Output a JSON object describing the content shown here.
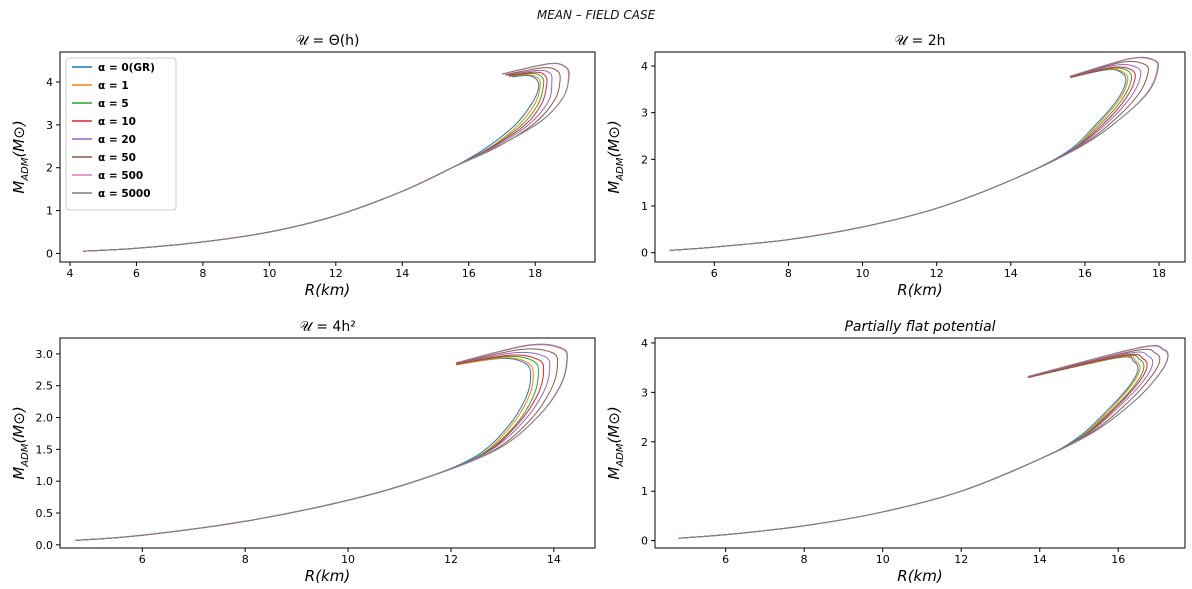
{
  "figure": {
    "suptitle": "MEAN – FIELD CASE"
  },
  "legend": {
    "placement": "upper-left of first panel",
    "entries": [
      "α = 0(GR)",
      "α = 1",
      "α = 5",
      "α = 10",
      "α = 20",
      "α = 50",
      "α = 500",
      "α = 5000"
    ]
  },
  "colors": {
    "series": [
      "#1f77b4",
      "#ff7f0e",
      "#2ca02c",
      "#d62728",
      "#9467bd",
      "#8c564b",
      "#e377c2",
      "#7f7f7f"
    ]
  },
  "chart_data": [
    {
      "type": "line",
      "title": "𝒰 = Θ(h)",
      "xlabel": "R(km)",
      "ylabel": "M_ADM(M_⊙)",
      "xlim": [
        3.7,
        19.8
      ],
      "ylim": [
        -0.2,
        4.7
      ],
      "xticks": [
        4,
        6,
        8,
        10,
        12,
        14,
        16,
        18
      ],
      "yticks": [
        0,
        1,
        2,
        3,
        4
      ],
      "grid": false,
      "legend": true,
      "base_curve": {
        "x": [
          4.4,
          6,
          8,
          10,
          12,
          14,
          15.5,
          16.5
        ],
        "y": [
          0.05,
          0.12,
          0.27,
          0.5,
          0.88,
          1.45,
          2.0,
          2.45
        ]
      },
      "series": [
        {
          "name": "α = 0(GR)",
          "x": [
            16.5,
            17.4,
            17.9,
            18.1,
            18.05,
            17.8,
            17.3
          ],
          "y": [
            2.45,
            3.0,
            3.5,
            3.85,
            4.05,
            4.15,
            4.12
          ]
        },
        {
          "name": "α = 1",
          "x": [
            16.6,
            17.5,
            18.0,
            18.15,
            18.1,
            17.8,
            17.2
          ],
          "y": [
            2.45,
            3.0,
            3.5,
            3.9,
            4.08,
            4.17,
            4.13
          ]
        },
        {
          "name": "α = 5",
          "x": [
            16.6,
            17.6,
            18.1,
            18.25,
            18.2,
            17.9,
            17.2
          ],
          "y": [
            2.45,
            3.0,
            3.5,
            3.92,
            4.12,
            4.2,
            4.14
          ]
        },
        {
          "name": "α = 10",
          "x": [
            16.7,
            17.7,
            18.2,
            18.35,
            18.3,
            18.0,
            17.2
          ],
          "y": [
            2.48,
            3.0,
            3.5,
            3.95,
            4.15,
            4.23,
            4.15
          ]
        },
        {
          "name": "α = 20",
          "x": [
            16.8,
            17.8,
            18.4,
            18.5,
            18.45,
            18.1,
            17.1
          ],
          "y": [
            2.5,
            3.0,
            3.55,
            4.0,
            4.2,
            4.27,
            4.16
          ]
        },
        {
          "name": "α = 50",
          "x": [
            16.9,
            18.0,
            18.6,
            18.75,
            18.65,
            18.2,
            17.1
          ],
          "y": [
            2.5,
            3.05,
            3.6,
            4.05,
            4.27,
            4.33,
            4.17
          ]
        },
        {
          "name": "α = 500",
          "x": [
            17.0,
            18.2,
            18.85,
            19.0,
            18.9,
            18.4,
            17.0
          ],
          "y": [
            2.55,
            3.1,
            3.65,
            4.12,
            4.35,
            4.42,
            4.18
          ]
        },
        {
          "name": "α = 5000",
          "x": [
            17.0,
            18.2,
            18.85,
            19.02,
            18.92,
            18.42,
            17.0
          ],
          "y": [
            2.55,
            3.1,
            3.65,
            4.12,
            4.35,
            4.43,
            4.19
          ]
        }
      ]
    },
    {
      "type": "line",
      "title": "𝒰 = 2h",
      "xlabel": "R(km)",
      "ylabel": "M_ADM(M_⊙)",
      "xlim": [
        4.4,
        18.7
      ],
      "ylim": [
        -0.2,
        4.3
      ],
      "xticks": [
        6,
        8,
        10,
        12,
        14,
        16,
        18
      ],
      "yticks": [
        0,
        1,
        2,
        3,
        4
      ],
      "grid": false,
      "legend": false,
      "base_curve": {
        "x": [
          4.8,
          6,
          8,
          10,
          12,
          14,
          15.5
        ],
        "y": [
          0.05,
          0.12,
          0.28,
          0.55,
          0.95,
          1.55,
          2.15
        ]
      },
      "series": [
        {
          "x": [
            15.5,
            16.3,
            16.85,
            17.1,
            17.0,
            16.6,
            15.6
          ],
          "y": [
            2.15,
            2.75,
            3.25,
            3.65,
            3.85,
            3.92,
            3.75
          ]
        },
        {
          "x": [
            15.55,
            16.35,
            16.9,
            17.15,
            17.05,
            16.6,
            15.6
          ],
          "y": [
            2.15,
            2.75,
            3.25,
            3.66,
            3.86,
            3.93,
            3.75
          ]
        },
        {
          "x": [
            15.6,
            16.45,
            17.0,
            17.25,
            17.15,
            16.7,
            15.6
          ],
          "y": [
            2.18,
            2.78,
            3.28,
            3.7,
            3.9,
            3.95,
            3.76
          ]
        },
        {
          "x": [
            15.65,
            16.55,
            17.1,
            17.35,
            17.25,
            16.75,
            15.6
          ],
          "y": [
            2.2,
            2.8,
            3.3,
            3.72,
            3.92,
            3.97,
            3.76
          ]
        },
        {
          "x": [
            15.7,
            16.65,
            17.25,
            17.5,
            17.4,
            16.85,
            15.6
          ],
          "y": [
            2.22,
            2.82,
            3.35,
            3.78,
            3.97,
            4.02,
            3.77
          ]
        },
        {
          "x": [
            15.8,
            16.8,
            17.45,
            17.7,
            17.6,
            17.0,
            15.6
          ],
          "y": [
            2.25,
            2.85,
            3.4,
            3.85,
            4.04,
            4.08,
            3.77
          ]
        },
        {
          "x": [
            15.9,
            17.0,
            17.7,
            17.95,
            17.85,
            17.2,
            15.6
          ],
          "y": [
            2.28,
            2.9,
            3.45,
            3.92,
            4.12,
            4.15,
            3.78
          ]
        },
        {
          "x": [
            15.9,
            17.0,
            17.72,
            17.97,
            17.87,
            17.22,
            15.6
          ],
          "y": [
            2.28,
            2.9,
            3.45,
            3.93,
            4.13,
            4.16,
            3.78
          ]
        }
      ]
    },
    {
      "type": "line",
      "title": "𝒰 = 4h²",
      "xlabel": "R(km)",
      "ylabel": "M_ADM(M_⊙)",
      "xlim": [
        4.4,
        14.8
      ],
      "ylim": [
        -0.05,
        3.25
      ],
      "xticks": [
        6,
        8,
        10,
        12,
        14
      ],
      "yticks": [
        0.0,
        0.5,
        1.0,
        1.5,
        2.0,
        2.5,
        3.0
      ],
      "grid": false,
      "legend": false,
      "base_curve": {
        "x": [
          4.7,
          6,
          8,
          10,
          11.5,
          12.5
        ],
        "y": [
          0.07,
          0.15,
          0.37,
          0.7,
          1.05,
          1.4
        ]
      },
      "series": [
        {
          "x": [
            12.5,
            13.1,
            13.45,
            13.55,
            13.45,
            13.0,
            12.1
          ],
          "y": [
            1.4,
            1.85,
            2.3,
            2.65,
            2.85,
            2.93,
            2.83
          ]
        },
        {
          "x": [
            12.55,
            13.15,
            13.5,
            13.6,
            13.5,
            13.05,
            12.1
          ],
          "y": [
            1.4,
            1.85,
            2.3,
            2.66,
            2.86,
            2.94,
            2.83
          ]
        },
        {
          "x": [
            12.6,
            13.25,
            13.6,
            13.7,
            13.6,
            13.1,
            12.1
          ],
          "y": [
            1.42,
            1.88,
            2.33,
            2.7,
            2.89,
            2.96,
            2.84
          ]
        },
        {
          "x": [
            12.65,
            13.3,
            13.68,
            13.8,
            13.7,
            13.15,
            12.1
          ],
          "y": [
            1.43,
            1.9,
            2.35,
            2.72,
            2.91,
            2.98,
            2.84
          ]
        },
        {
          "x": [
            12.7,
            13.4,
            13.8,
            13.92,
            13.82,
            13.25,
            12.1
          ],
          "y": [
            1.45,
            1.93,
            2.4,
            2.77,
            2.96,
            3.02,
            2.85
          ]
        },
        {
          "x": [
            12.8,
            13.55,
            13.95,
            14.07,
            13.97,
            13.35,
            12.1
          ],
          "y": [
            1.47,
            1.97,
            2.45,
            2.82,
            3.02,
            3.07,
            2.85
          ]
        },
        {
          "x": [
            12.9,
            13.7,
            14.12,
            14.25,
            14.15,
            13.5,
            12.1
          ],
          "y": [
            1.5,
            2.02,
            2.5,
            2.9,
            3.08,
            3.13,
            2.86
          ]
        },
        {
          "x": [
            12.9,
            13.7,
            14.13,
            14.26,
            14.16,
            13.51,
            12.1
          ],
          "y": [
            1.5,
            2.02,
            2.5,
            2.9,
            3.09,
            3.14,
            2.86
          ]
        }
      ]
    },
    {
      "type": "line",
      "title": "Partially flat potential",
      "xlabel": "R(km)",
      "ylabel": "M_ADM(M_⊙)",
      "xlim": [
        4.2,
        17.7
      ],
      "ylim": [
        -0.15,
        4.1
      ],
      "xticks": [
        6,
        8,
        10,
        12,
        14,
        16
      ],
      "yticks": [
        0,
        1,
        2,
        3,
        4
      ],
      "grid": false,
      "legend": false,
      "base_curve": {
        "x": [
          4.8,
          6,
          8,
          10,
          12,
          14,
          15.0
        ],
        "y": [
          0.05,
          0.12,
          0.3,
          0.58,
          1.0,
          1.65,
          2.1
        ]
      },
      "series": [
        {
          "x": [
            15.0,
            15.8,
            16.3,
            16.5,
            16.4,
            16.0,
            13.7
          ],
          "y": [
            2.1,
            2.7,
            3.15,
            3.45,
            3.62,
            3.7,
            3.3
          ]
        },
        {
          "x": [
            15.05,
            15.85,
            16.35,
            16.55,
            16.45,
            16.05,
            13.7
          ],
          "y": [
            2.1,
            2.7,
            3.16,
            3.46,
            3.63,
            3.71,
            3.3
          ]
        },
        {
          "x": [
            15.1,
            15.95,
            16.45,
            16.65,
            16.55,
            16.1,
            13.7
          ],
          "y": [
            2.12,
            2.73,
            3.18,
            3.49,
            3.66,
            3.73,
            3.3
          ]
        },
        {
          "x": [
            15.15,
            16.0,
            16.52,
            16.73,
            16.63,
            16.15,
            13.7
          ],
          "y": [
            2.13,
            2.74,
            3.2,
            3.51,
            3.68,
            3.75,
            3.3
          ]
        },
        {
          "x": [
            15.2,
            16.1,
            16.65,
            16.87,
            16.77,
            16.25,
            13.7
          ],
          "y": [
            2.15,
            2.77,
            3.24,
            3.56,
            3.73,
            3.79,
            3.31
          ]
        },
        {
          "x": [
            15.3,
            16.25,
            16.82,
            17.05,
            16.95,
            16.4,
            13.7
          ],
          "y": [
            2.18,
            2.8,
            3.3,
            3.62,
            3.79,
            3.84,
            3.31
          ]
        },
        {
          "x": [
            15.4,
            16.45,
            17.02,
            17.25,
            17.15,
            16.55,
            13.7
          ],
          "y": [
            2.21,
            2.85,
            3.35,
            3.68,
            3.86,
            3.9,
            3.32
          ]
        },
        {
          "x": [
            15.4,
            16.45,
            17.03,
            17.26,
            17.16,
            16.56,
            13.7
          ],
          "y": [
            2.21,
            2.85,
            3.35,
            3.69,
            3.87,
            3.91,
            3.32
          ]
        }
      ]
    }
  ]
}
